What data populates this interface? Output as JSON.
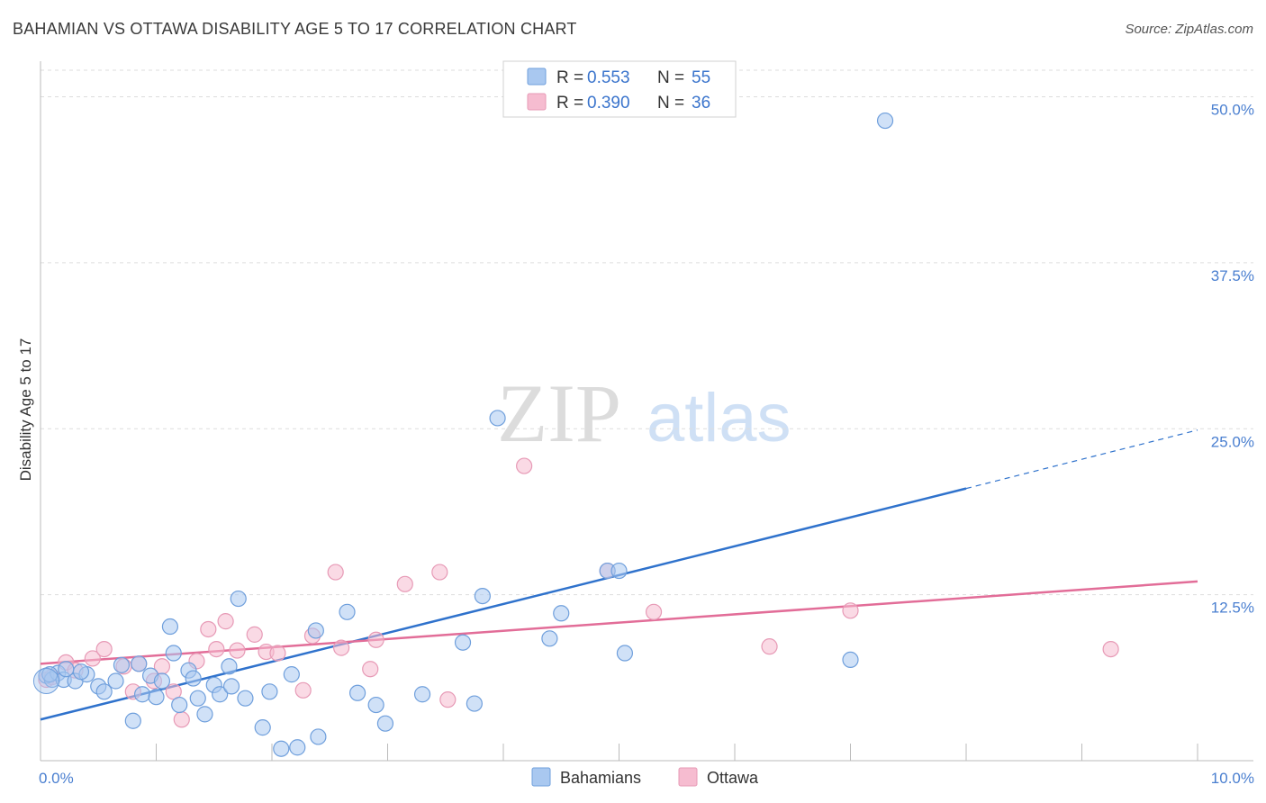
{
  "title": "BAHAMIAN VS OTTAWA DISABILITY AGE 5 TO 17 CORRELATION CHART",
  "source": "Source: ZipAtlas.com",
  "watermark": {
    "zip": "ZIP",
    "atlas": "atlas"
  },
  "colors": {
    "blue_fill": "#a9c8f0",
    "blue_stroke": "#6f9fdc",
    "blue_line": "#2f72cc",
    "pink_fill": "#f6bcd0",
    "pink_stroke": "#e79ab6",
    "pink_line": "#e26d98",
    "grid": "#dddddd",
    "tick_text": "#4a7fd0"
  },
  "legend": {
    "r_label": "R =",
    "n_label": "N =",
    "rows": [
      {
        "series": "Bahamians",
        "r": "0.553",
        "n": "55"
      },
      {
        "series": "Ottawa",
        "r": "0.390",
        "n": "36"
      }
    ]
  },
  "chart_data": {
    "type": "scatter",
    "title": "BAHAMIAN VS OTTAWA DISABILITY AGE 5 TO 17 CORRELATION CHART",
    "xlabel": "",
    "ylabel": "Disability Age 5 to 17",
    "xlim": [
      0,
      10
    ],
    "ylim": [
      0,
      52
    ],
    "x_tick_labels": [
      {
        "value": 0,
        "label": "0.0%"
      },
      {
        "value": 10,
        "label": "10.0%"
      }
    ],
    "y_tick_labels": [
      {
        "value": 12.5,
        "label": "12.5%"
      },
      {
        "value": 25,
        "label": "25.0%"
      },
      {
        "value": 37.5,
        "label": "37.5%"
      },
      {
        "value": 50,
        "label": "50.0%"
      }
    ],
    "series": [
      {
        "name": "Bahamians",
        "r": 0.553,
        "n": 55,
        "trend": {
          "x0": 0,
          "y0": 3.1,
          "x1": 8.0,
          "y1": 20.5,
          "dash_to_x": 10,
          "dash_to_y": 24.9
        },
        "points": [
          [
            0.05,
            6.4
          ],
          [
            0.1,
            6.1
          ],
          [
            0.15,
            6.6
          ],
          [
            0.2,
            6.1
          ],
          [
            0.3,
            6.0
          ],
          [
            0.4,
            6.5
          ],
          [
            0.5,
            5.6
          ],
          [
            0.55,
            5.2
          ],
          [
            0.35,
            6.7
          ],
          [
            0.65,
            6.0
          ],
          [
            0.7,
            7.2
          ],
          [
            0.8,
            3.0
          ],
          [
            0.85,
            7.3
          ],
          [
            0.88,
            5.0
          ],
          [
            0.95,
            6.4
          ],
          [
            1.0,
            4.8
          ],
          [
            1.05,
            6.0
          ],
          [
            1.12,
            10.1
          ],
          [
            1.15,
            8.1
          ],
          [
            1.2,
            4.2
          ],
          [
            1.28,
            6.8
          ],
          [
            1.32,
            6.2
          ],
          [
            1.36,
            4.7
          ],
          [
            1.42,
            3.5
          ],
          [
            1.5,
            5.7
          ],
          [
            1.55,
            5.0
          ],
          [
            1.63,
            7.1
          ],
          [
            1.71,
            12.2
          ],
          [
            1.77,
            4.7
          ],
          [
            1.92,
            2.5
          ],
          [
            1.98,
            5.2
          ],
          [
            2.08,
            0.9
          ],
          [
            2.17,
            6.5
          ],
          [
            2.22,
            1.0
          ],
          [
            2.38,
            9.8
          ],
          [
            2.4,
            1.8
          ],
          [
            2.65,
            11.2
          ],
          [
            2.74,
            5.1
          ],
          [
            2.9,
            4.2
          ],
          [
            2.98,
            2.8
          ],
          [
            3.3,
            5.0
          ],
          [
            3.65,
            8.9
          ],
          [
            3.75,
            4.3
          ],
          [
            3.82,
            12.4
          ],
          [
            3.95,
            25.8
          ],
          [
            4.4,
            9.2
          ],
          [
            4.5,
            11.1
          ],
          [
            4.9,
            14.3
          ],
          [
            5.0,
            14.3
          ],
          [
            5.05,
            8.1
          ],
          [
            7.0,
            7.6
          ],
          [
            7.3,
            48.2
          ],
          [
            0.08,
            6.5
          ],
          [
            0.22,
            6.9
          ],
          [
            1.65,
            5.6
          ]
        ]
      },
      {
        "name": "Ottawa",
        "r": 0.39,
        "n": 36,
        "trend": {
          "x0": 0,
          "y0": 7.3,
          "x1": 10,
          "y1": 13.5
        },
        "points": [
          [
            0.05,
            6.1
          ],
          [
            0.1,
            6.3
          ],
          [
            0.22,
            7.4
          ],
          [
            0.3,
            6.8
          ],
          [
            0.45,
            7.7
          ],
          [
            0.55,
            8.4
          ],
          [
            0.72,
            7.1
          ],
          [
            0.8,
            5.2
          ],
          [
            0.85,
            7.3
          ],
          [
            0.98,
            6.0
          ],
          [
            1.05,
            7.1
          ],
          [
            1.15,
            5.2
          ],
          [
            1.22,
            3.1
          ],
          [
            1.35,
            7.5
          ],
          [
            1.45,
            9.9
          ],
          [
            1.52,
            8.4
          ],
          [
            1.6,
            10.5
          ],
          [
            1.7,
            8.3
          ],
          [
            1.85,
            9.5
          ],
          [
            1.95,
            8.2
          ],
          [
            2.05,
            8.1
          ],
          [
            2.27,
            5.3
          ],
          [
            2.35,
            9.4
          ],
          [
            2.55,
            14.2
          ],
          [
            2.6,
            8.5
          ],
          [
            2.9,
            9.1
          ],
          [
            2.85,
            6.9
          ],
          [
            3.15,
            13.3
          ],
          [
            3.45,
            14.2
          ],
          [
            3.52,
            4.6
          ],
          [
            4.18,
            22.2
          ],
          [
            4.9,
            14.3
          ],
          [
            5.3,
            11.2
          ],
          [
            6.3,
            8.6
          ],
          [
            7.0,
            11.3
          ],
          [
            9.25,
            8.4
          ]
        ]
      }
    ]
  },
  "bottom_legend": [
    {
      "series": "Bahamians",
      "label": "Bahamians"
    },
    {
      "series": "Ottawa",
      "label": "Ottawa"
    }
  ]
}
